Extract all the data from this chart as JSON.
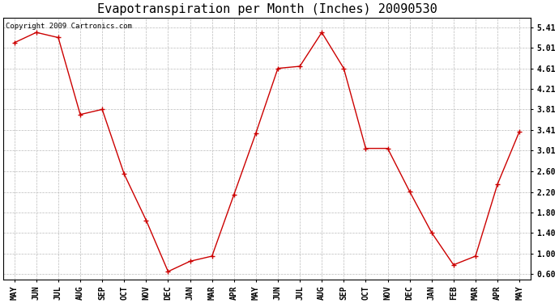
{
  "title": "Evapotranspiration per Month (Inches) 20090530",
  "copyright_text": "Copyright 2009 Cartronics.com",
  "months": [
    "MAY",
    "JUN",
    "JUL",
    "AUG",
    "SEP",
    "OCT",
    "NOV",
    "DEC",
    "JAN",
    "MAR",
    "APR",
    "MAY",
    "JUN",
    "JUL",
    "AUG",
    "SEP",
    "OCT",
    "NOV",
    "DEC",
    "JAN",
    "FEB",
    "MAR",
    "APR",
    "MAY"
  ],
  "values": [
    5.11,
    5.31,
    5.21,
    3.71,
    3.81,
    2.55,
    1.65,
    0.65,
    0.85,
    0.95,
    2.15,
    3.35,
    4.61,
    4.65,
    5.31,
    4.61,
    3.05,
    3.05,
    2.21,
    1.41,
    0.78,
    0.95,
    2.35,
    3.38
  ],
  "line_color": "#cc0000",
  "marker": "o",
  "marker_size": 2.5,
  "background_color": "#ffffff",
  "plot_bg_color": "#ffffff",
  "grid_color": "#bbbbbb",
  "ytick_labels": [
    "0.60",
    "1.00",
    "1.40",
    "1.80",
    "2.20",
    "2.60",
    "3.01",
    "3.41",
    "3.81",
    "4.21",
    "4.61",
    "5.01",
    "5.41"
  ],
  "ytick_values": [
    0.6,
    1.0,
    1.4,
    1.8,
    2.2,
    2.6,
    3.01,
    3.41,
    3.81,
    4.21,
    4.61,
    5.01,
    5.41
  ],
  "ylim": [
    0.5,
    5.6
  ],
  "title_fontsize": 11,
  "tick_fontsize": 7,
  "copyright_fontsize": 6.5
}
